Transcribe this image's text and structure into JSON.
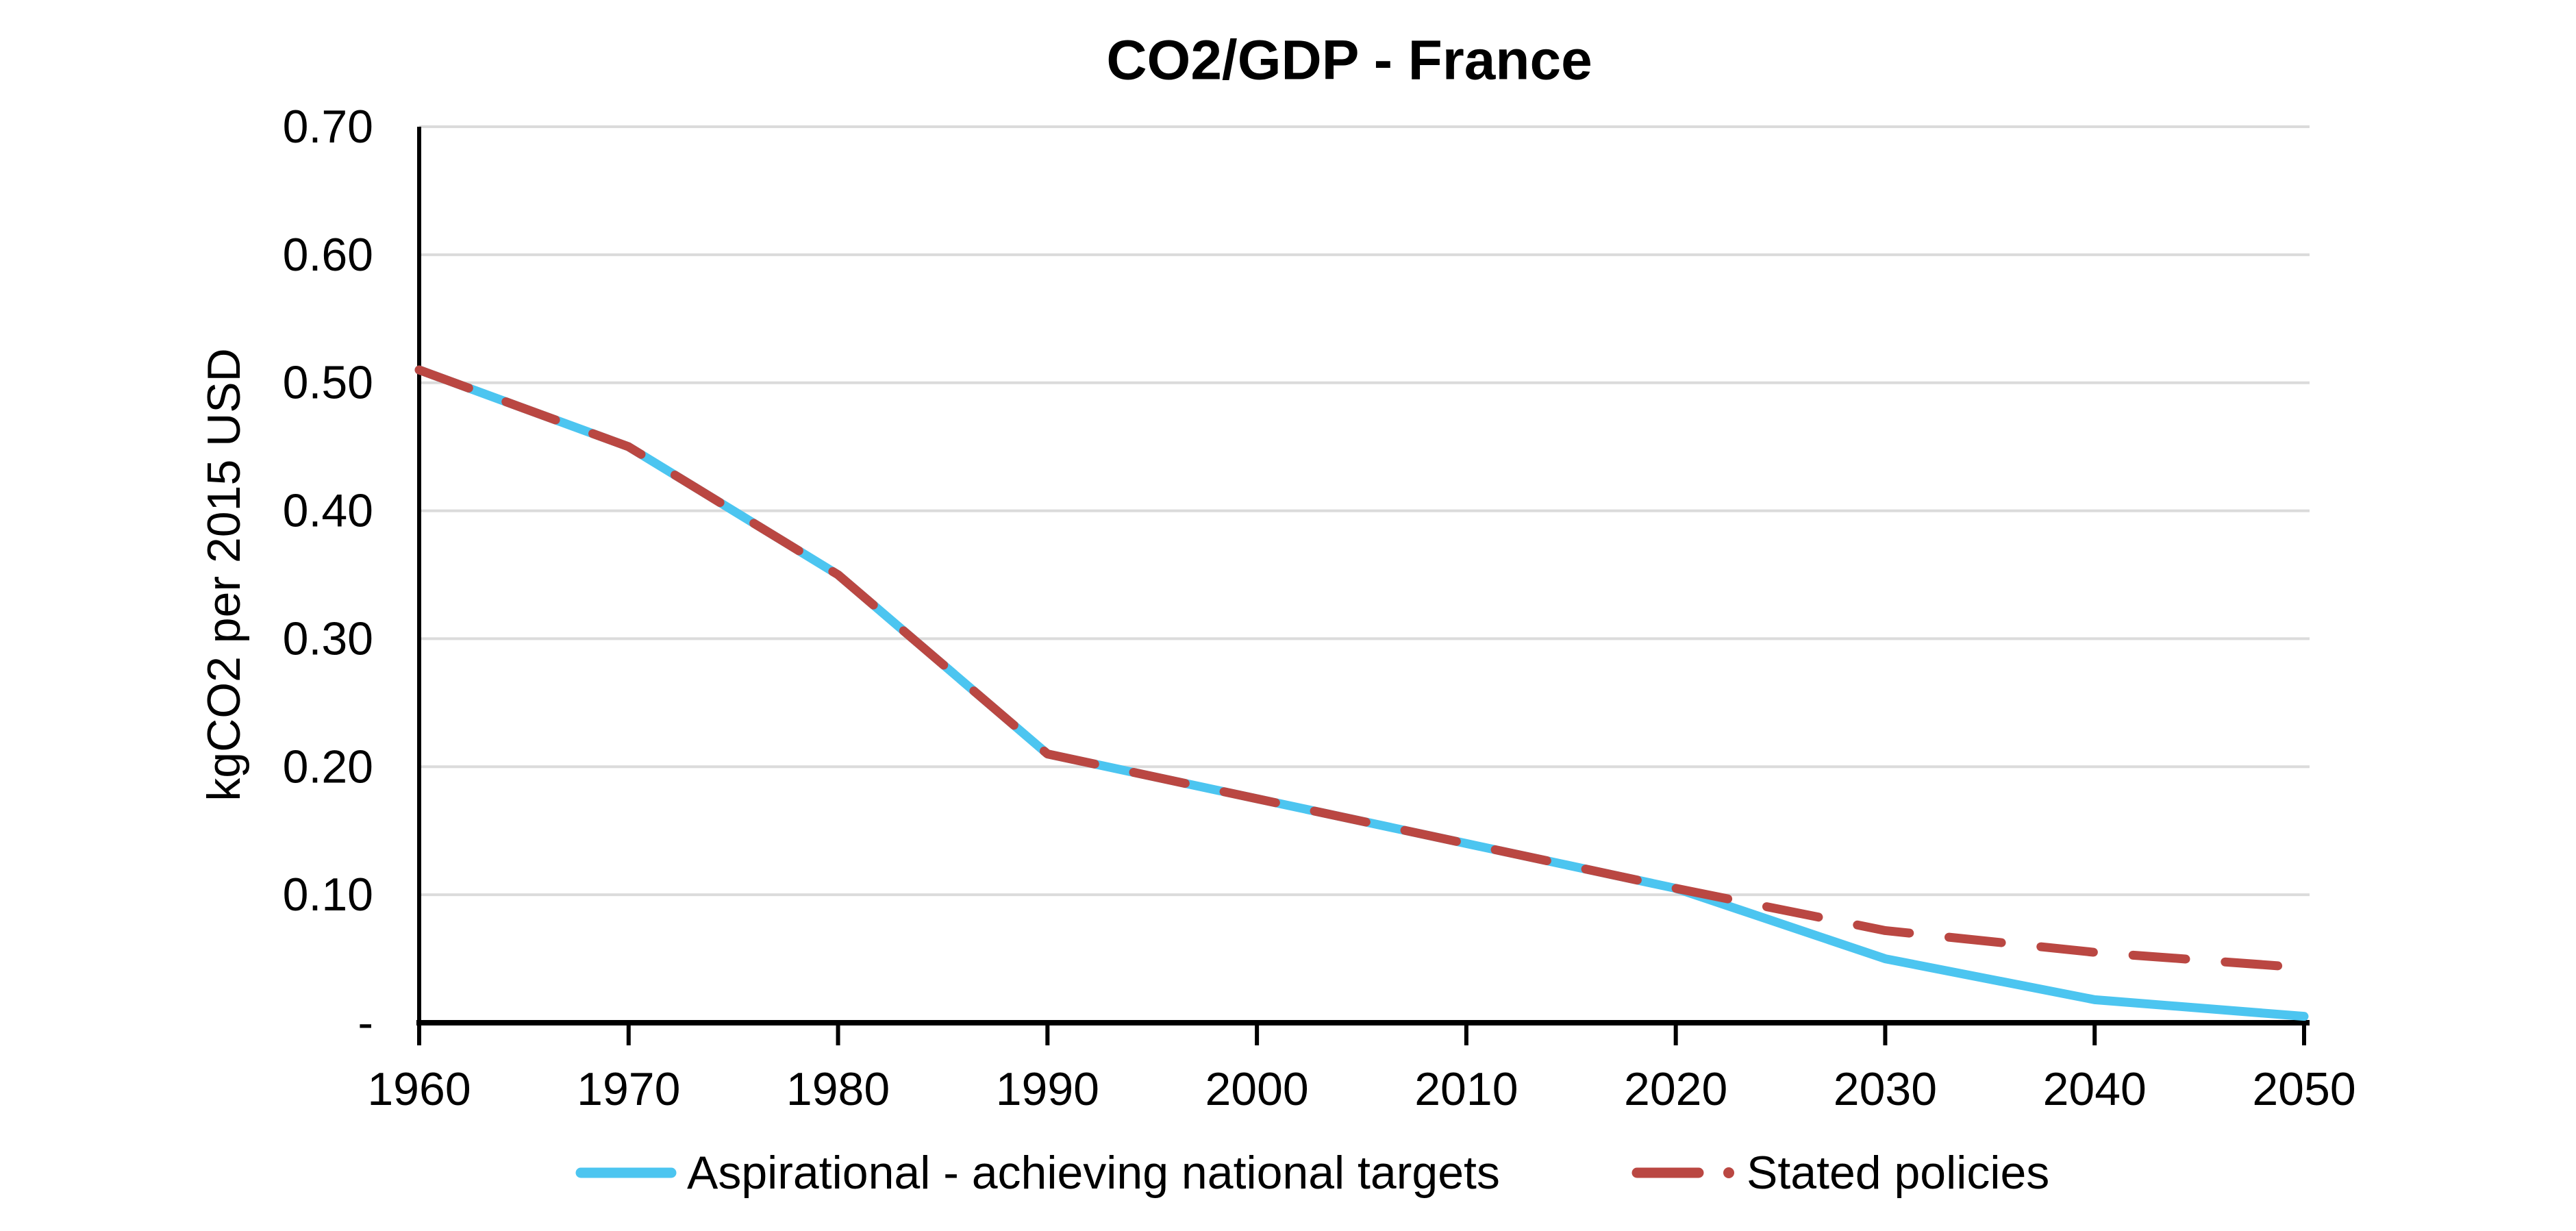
{
  "chart_data": {
    "type": "line",
    "title": "CO2/GDP - France",
    "ylabel": "kgCO2 per 2015 USD",
    "xlabel": "",
    "x": [
      1960,
      1970,
      1980,
      1990,
      2000,
      2010,
      2020,
      2030,
      2040,
      2050
    ],
    "series": [
      {
        "name": "Aspirational - achieving national targets",
        "color": "#4CC5F0",
        "style": "solid",
        "values": [
          0.51,
          0.45,
          0.35,
          0.21,
          0.175,
          0.14,
          0.105,
          0.05,
          0.018,
          0.005
        ]
      },
      {
        "name": "Stated policies",
        "color": "#BA4742",
        "style": "dashed",
        "values": [
          0.51,
          0.45,
          0.35,
          0.21,
          0.175,
          0.14,
          0.105,
          0.072,
          0.055,
          0.043
        ]
      }
    ],
    "xlim": [
      1960,
      2050
    ],
    "ylim": [
      0,
      0.7
    ],
    "x_ticks": [
      {
        "value": 1960,
        "label": "1960"
      },
      {
        "value": 1970,
        "label": "1970"
      },
      {
        "value": 1980,
        "label": "1980"
      },
      {
        "value": 1990,
        "label": "1990"
      },
      {
        "value": 2000,
        "label": "2000"
      },
      {
        "value": 2010,
        "label": "2010"
      },
      {
        "value": 2020,
        "label": "2020"
      },
      {
        "value": 2030,
        "label": "2030"
      },
      {
        "value": 2040,
        "label": "2040"
      },
      {
        "value": 2050,
        "label": "2050"
      }
    ],
    "y_ticks": [
      {
        "value": 0.7,
        "label": "0.70"
      },
      {
        "value": 0.6,
        "label": "0.60"
      },
      {
        "value": 0.5,
        "label": "0.50"
      },
      {
        "value": 0.4,
        "label": "0.40"
      },
      {
        "value": 0.3,
        "label": "0.30"
      },
      {
        "value": 0.2,
        "label": "0.20"
      },
      {
        "value": 0.1,
        "label": "0.10"
      },
      {
        "value": 0,
        "label": "-"
      }
    ],
    "grid": "horizontal",
    "legend_position": "bottom",
    "colors": {
      "grid": "#DBDBDB",
      "axis": "#000000",
      "text": "#000000",
      "background": "#FFFFFF"
    }
  }
}
